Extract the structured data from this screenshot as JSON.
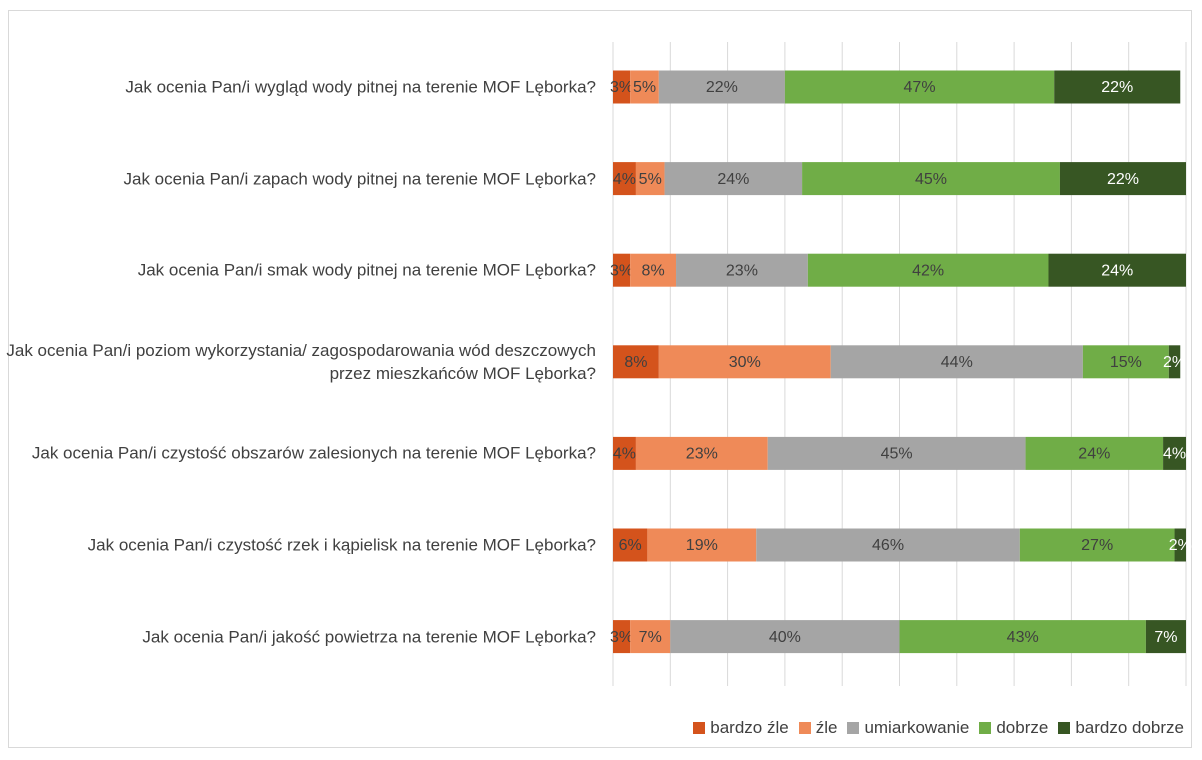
{
  "chart_data": {
    "type": "stacked-bar-horizontal",
    "categories": [
      "Jak ocenia Pan/i wygląd wody pitnej na terenie MOF Lęborka?",
      "Jak ocenia Pan/i zapach wody pitnej na terenie MOF Lęborka?",
      "Jak ocenia Pan/i smak wody pitnej na terenie MOF Lęborka?",
      "Jak ocenia Pan/i poziom wykorzystania/ zagospodarowania wód deszczowych przez mieszkańców MOF Lęborka?",
      "Jak ocenia Pan/i czystość obszarów zalesionych na terenie MOF Lęborka?",
      "Jak ocenia Pan/i czystość rzek i kąpielisk na terenie MOF Lęborka?",
      "Jak ocenia Pan/i jakość powietrza na terenie MOF Lęborka?"
    ],
    "series": [
      {
        "name": "bardzo źle",
        "color": "#d4531c",
        "label_color": "#404040",
        "values": [
          3,
          4,
          3,
          8,
          4,
          6,
          3
        ],
        "value_labels": [
          "3%",
          "4%",
          "3%",
          "8%",
          "4%",
          "6%",
          "3%"
        ]
      },
      {
        "name": "źle",
        "color": "#ef8a58",
        "label_color": "#404040",
        "values": [
          5,
          5,
          8,
          30,
          23,
          19,
          7
        ],
        "value_labels": [
          "5%",
          "5%",
          "8%",
          "30%",
          "23%",
          "19%",
          "7%"
        ]
      },
      {
        "name": "umiarkowanie",
        "color": "#a5a5a5",
        "label_color": "#404040",
        "values": [
          22,
          24,
          23,
          44,
          45,
          46,
          40
        ],
        "value_labels": [
          "22%",
          "24%",
          "23%",
          "44%",
          "45%",
          "46%",
          "40%"
        ]
      },
      {
        "name": "dobrze",
        "color": "#70ad47",
        "label_color": "#404040",
        "values": [
          47,
          45,
          42,
          15,
          24,
          27,
          43
        ],
        "value_labels": [
          "47%",
          "45%",
          "42%",
          "15%",
          "24%",
          "27%",
          "43%"
        ]
      },
      {
        "name": "bardzo dobrze",
        "color": "#375623",
        "label_color": "#ffffff",
        "values": [
          22,
          22,
          24,
          2,
          4,
          2,
          7
        ],
        "value_labels": [
          "22%",
          "22%",
          "24%",
          "2%",
          "4%",
          "2%",
          "7%"
        ]
      }
    ],
    "xlim": [
      0,
      100
    ],
    "xticks": [
      0,
      10,
      20,
      30,
      40,
      50,
      60,
      70,
      80,
      90,
      100
    ],
    "grid": true,
    "legend": "bottom"
  }
}
